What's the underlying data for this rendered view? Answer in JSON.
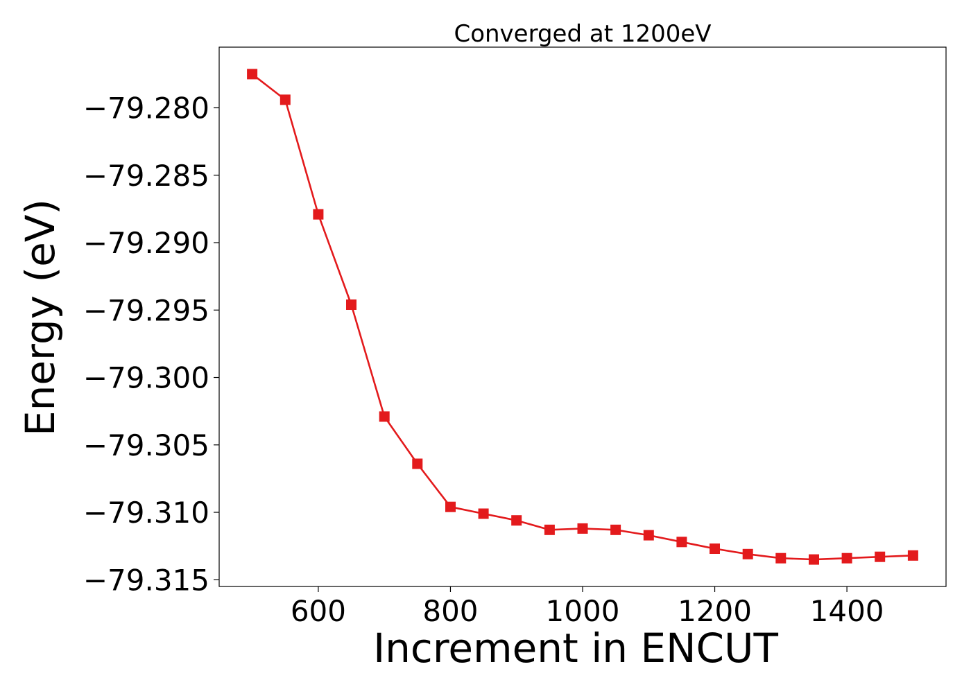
{
  "chart_data": {
    "type": "line",
    "title": "Converged at 1200eV",
    "xlabel": "Increment in ENCUT",
    "ylabel": "Energy (eV)",
    "xlim": [
      450,
      1550
    ],
    "ylim": [
      -79.3155,
      -79.2755
    ],
    "x_ticks": [
      600,
      800,
      1000,
      1200,
      1400
    ],
    "x_tick_labels": [
      "600",
      "800",
      "1000",
      "1200",
      "1400"
    ],
    "y_ticks": [
      -79.28,
      -79.285,
      -79.29,
      -79.295,
      -79.3,
      -79.305,
      -79.31,
      -79.315
    ],
    "y_tick_labels": [
      "−79.280",
      "−79.285",
      "−79.290",
      "−79.295",
      "−79.300",
      "−79.305",
      "−79.310",
      "−79.315"
    ],
    "grid": false,
    "legend": "none",
    "marker": "square",
    "series": [
      {
        "color": "#e31a1c",
        "x": [
          500,
          550,
          600,
          650,
          700,
          750,
          800,
          850,
          900,
          950,
          1000,
          1050,
          1100,
          1150,
          1200,
          1250,
          1300,
          1350,
          1400,
          1450,
          1500
        ],
        "values": [
          -79.2775,
          -79.2794,
          -79.2879,
          -79.2946,
          -79.3029,
          -79.3064,
          -79.3096,
          -79.3101,
          -79.3106,
          -79.3113,
          -79.3112,
          -79.3113,
          -79.3117,
          -79.3122,
          -79.3127,
          -79.3131,
          -79.3134,
          -79.3135,
          -79.3134,
          -79.3133,
          -79.3132
        ]
      }
    ]
  }
}
